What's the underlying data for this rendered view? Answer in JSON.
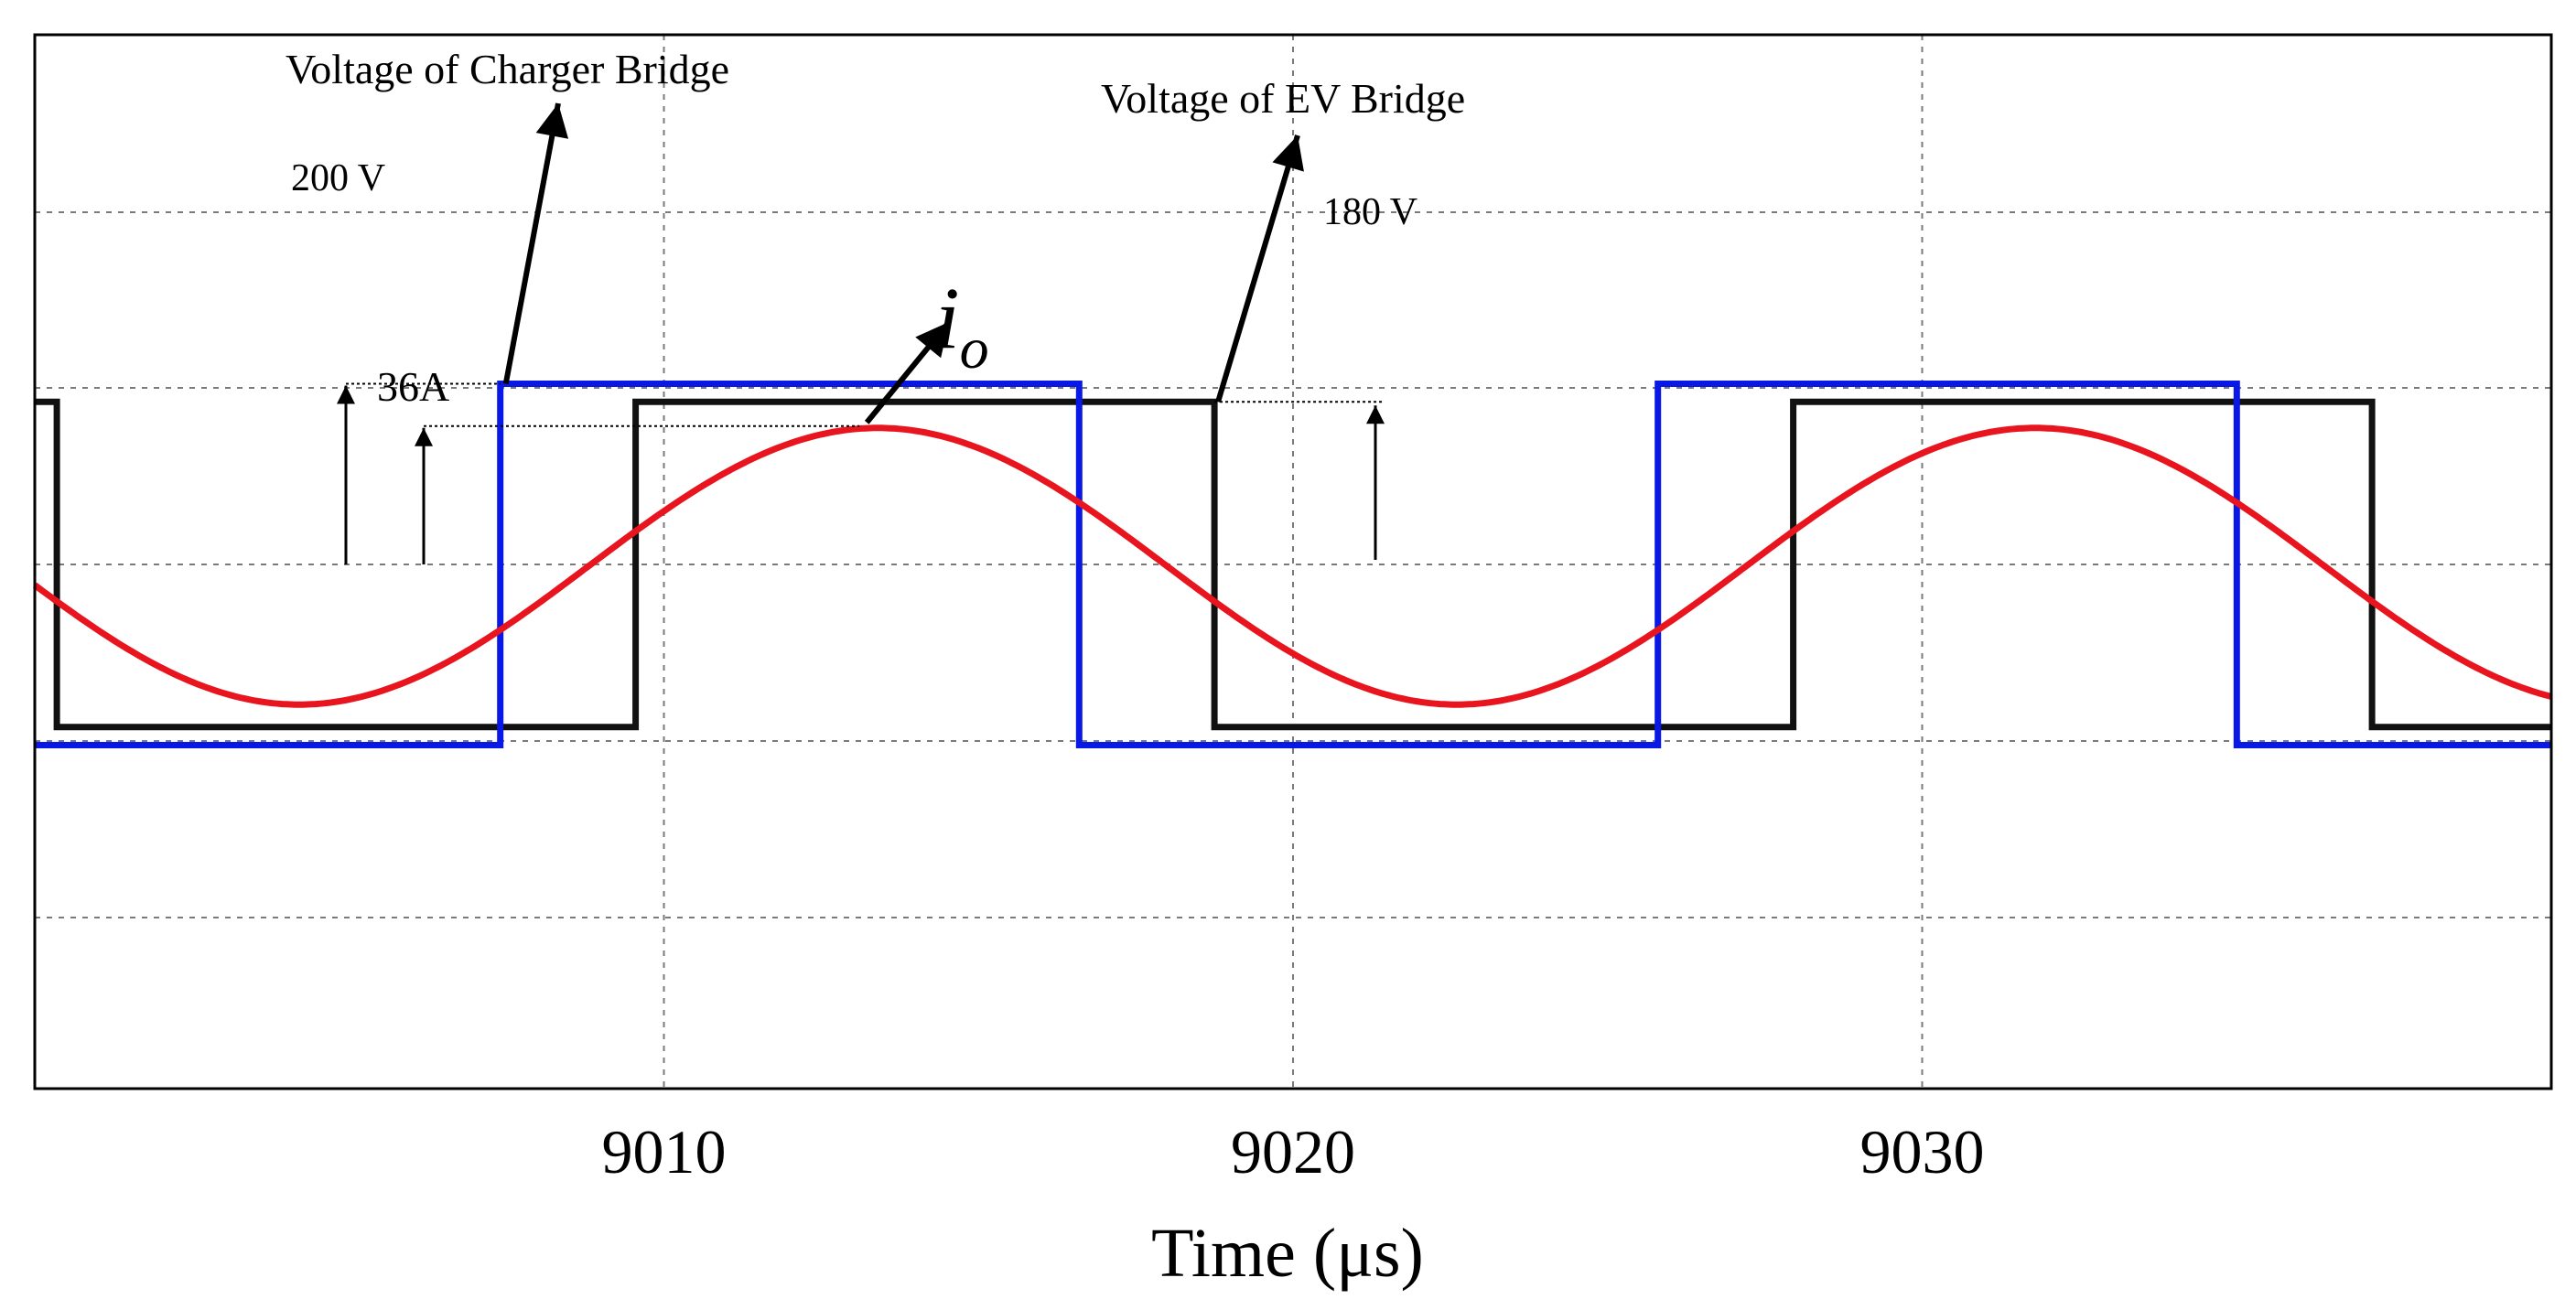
{
  "chart_data": {
    "type": "line",
    "title": "",
    "xlabel": "Time (μs)",
    "ylabel": "",
    "xlim": [
      9000,
      9040
    ],
    "xticks": [
      {
        "value": 9010,
        "label": "9010"
      },
      {
        "value": 9020,
        "label": "9020"
      },
      {
        "value": 9030,
        "label": "9030"
      }
    ],
    "grid": true,
    "legend": "none",
    "series": [
      {
        "name": "Voltage of Charger Bridge",
        "kind": "square",
        "color": "#0a18e6",
        "high": 200,
        "low": -200,
        "start_level": "low",
        "transitions": [
          9007.4,
          9016.6,
          9025.8,
          9035.0
        ]
      },
      {
        "name": "Voltage of EV Bridge",
        "kind": "square",
        "color": "#111111",
        "high": 180,
        "low": -180,
        "start_level": "high",
        "transitions": [
          9000.35,
          9009.55,
          9018.75,
          9027.95,
          9037.15
        ]
      },
      {
        "name": "i_o",
        "kind": "sine",
        "color": "#e8141e",
        "amplitude": 36,
        "period": 18.4,
        "peak_at": 9013.4
      }
    ],
    "annotations": [
      {
        "id": "charger",
        "text": "Voltage of Charger Bridge"
      },
      {
        "id": "ev",
        "text": "Voltage of EV Bridge"
      },
      {
        "id": "v200",
        "text": "200 V"
      },
      {
        "id": "v180",
        "text": "180 V"
      },
      {
        "id": "a36",
        "text": "36A"
      },
      {
        "id": "io",
        "base": "i",
        "sub": "o"
      }
    ]
  }
}
